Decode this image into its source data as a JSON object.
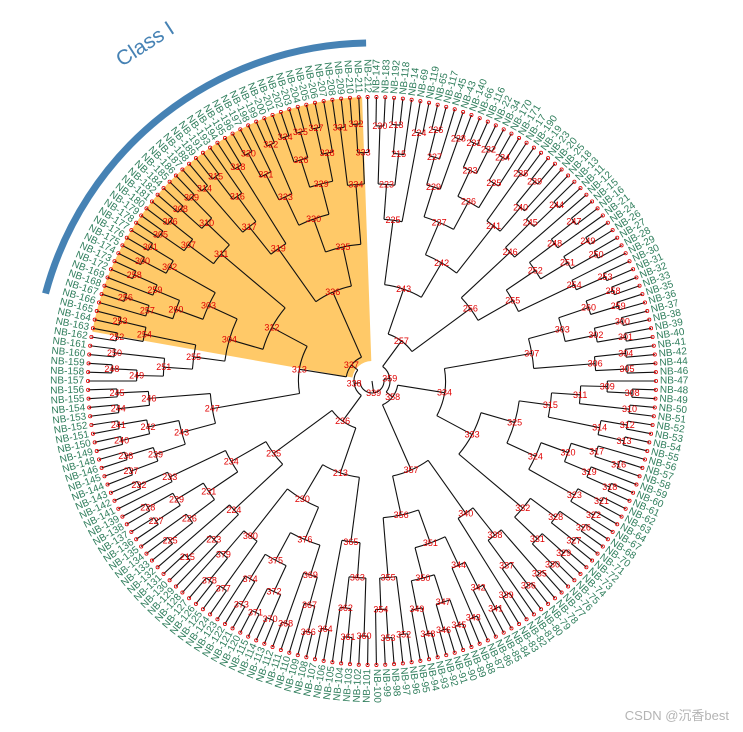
{
  "clade": {
    "label": "Class I",
    "arc_color": "#4682B4",
    "highlight_color": "#FFBF4D"
  },
  "colors": {
    "tip_label": "#2E7D5B",
    "node_label": "#E00000",
    "branch": "#111111",
    "tip_point": "#E00000"
  },
  "node_labels": [
    "230",
    "213",
    "215",
    "223",
    "224",
    "225",
    "226",
    "227",
    "228",
    "229",
    "231",
    "232",
    "233",
    "234",
    "235",
    "236",
    "237",
    "238",
    "239",
    "240",
    "241",
    "242",
    "243",
    "244",
    "245",
    "246",
    "247",
    "248",
    "249",
    "250",
    "251",
    "252",
    "253",
    "254",
    "255",
    "256",
    "257",
    "258",
    "259",
    "260",
    "300",
    "301",
    "302",
    "303",
    "304",
    "305",
    "306",
    "307",
    "308",
    "309",
    "310",
    "311",
    "312",
    "313",
    "314",
    "315",
    "316",
    "317",
    "318",
    "319",
    "320",
    "321",
    "322",
    "323",
    "324",
    "325",
    "326",
    "327",
    "328",
    "329",
    "330",
    "331",
    "332",
    "333",
    "334",
    "335",
    "336",
    "337",
    "338",
    "339",
    "340",
    "341",
    "342",
    "343",
    "344",
    "345",
    "346",
    "347",
    "348",
    "349",
    "350",
    "351",
    "352",
    "353",
    "354",
    "355",
    "356",
    "357",
    "358",
    "359",
    "360",
    "361",
    "362",
    "363",
    "364",
    "365",
    "366",
    "367",
    "368",
    "369",
    "370",
    "371",
    "372",
    "373",
    "374",
    "375",
    "376",
    "377",
    "378",
    "379",
    "380"
  ],
  "tip_labels": [
    "NB-147",
    "NB-183",
    "NB-192",
    "NB-118",
    "NB-14",
    "NB-69",
    "NB-119",
    "NB-65",
    "NB-117",
    "NB-45",
    "NB-43",
    "NB-140",
    "NB-66",
    "NB-116",
    "NB-22",
    "NB-34",
    "NB-170",
    "NB-171",
    "NB-17",
    "NB-190",
    "NB-19",
    "NB-23",
    "NB-20",
    "NB-25",
    "NB-18",
    "NB-13",
    "NB-11",
    "NB-12",
    "NB-15",
    "NB-16",
    "NB-21",
    "NB-24",
    "NB-26",
    "NB-27",
    "NB-28",
    "NB-29",
    "NB-30",
    "NB-31",
    "NB-32",
    "NB-33",
    "NB-35",
    "NB-36",
    "NB-37",
    "NB-38",
    "NB-39",
    "NB-40",
    "NB-41",
    "NB-42",
    "NB-44",
    "NB-46",
    "NB-47",
    "NB-48",
    "NB-49",
    "NB-50",
    "NB-51",
    "NB-52",
    "NB-53",
    "NB-54",
    "NB-55",
    "NB-56",
    "NB-57",
    "NB-58",
    "NB-59",
    "NB-60",
    "NB-61",
    "NB-62",
    "NB-63",
    "NB-64",
    "NB-67",
    "NB-68",
    "NB-70",
    "NB-71",
    "NB-72",
    "NB-73",
    "NB-74",
    "NB-75",
    "NB-76",
    "NB-77",
    "NB-78",
    "NB-79",
    "NB-80",
    "NB-81",
    "NB-82",
    "NB-83",
    "NB-84",
    "NB-85",
    "NB-86",
    "NB-87",
    "NB-88",
    "NB-89",
    "NB-90",
    "NB-91",
    "NB-92",
    "NB-93",
    "NB-94",
    "NB-95",
    "NB-96",
    "NB-97",
    "NB-98",
    "NB-99",
    "NB-100",
    "NB-101",
    "NB-102",
    "NB-103",
    "NB-104",
    "NB-105",
    "NB-106",
    "NB-107",
    "NB-108",
    "NB-109",
    "NB-110",
    "NB-111",
    "NB-112",
    "NB-113",
    "NB-114",
    "NB-115",
    "NB-120",
    "NB-121",
    "NB-122",
    "NB-123",
    "NB-124",
    "NB-125",
    "NB-126",
    "NB-127",
    "NB-128",
    "NB-129",
    "NB-130",
    "NB-131",
    "NB-132",
    "NB-133",
    "NB-134",
    "NB-135",
    "NB-136",
    "NB-137",
    "NB-138",
    "NB-139",
    "NB-141",
    "NB-142",
    "NB-143",
    "NB-144",
    "NB-145",
    "NB-146",
    "NB-148",
    "NB-149",
    "NB-150",
    "NB-151",
    "NB-152",
    "NB-153",
    "NB-154",
    "NB-155",
    "NB-156",
    "NB-157",
    "NB-158",
    "NB-159",
    "NB-160",
    "NB-161",
    "NB-162",
    "NB-163",
    "NB-164",
    "NB-165",
    "NB-166",
    "NB-167",
    "NB-168",
    "NB-169",
    "NB-172",
    "NB-173",
    "NB-174",
    "NB-175",
    "NB-176",
    "NB-177",
    "NB-178",
    "NB-179",
    "NB-180",
    "NB-181",
    "NB-182",
    "NB-184",
    "NB-185",
    "NB-186",
    "NB-187",
    "NB-188",
    "NB-189",
    "NB-191",
    "NB-193",
    "NB-194",
    "NB-195",
    "NB-196",
    "NB-197",
    "NB-198",
    "NB-199",
    "NB-200",
    "NB-201",
    "NB-202",
    "NB-203",
    "NB-204",
    "NB-205",
    "NB-206",
    "NB-207",
    "NB-208",
    "NB-209",
    "NB-210",
    "NB-211",
    "NB-212"
  ],
  "watermark": "CSDN @沉香best"
}
